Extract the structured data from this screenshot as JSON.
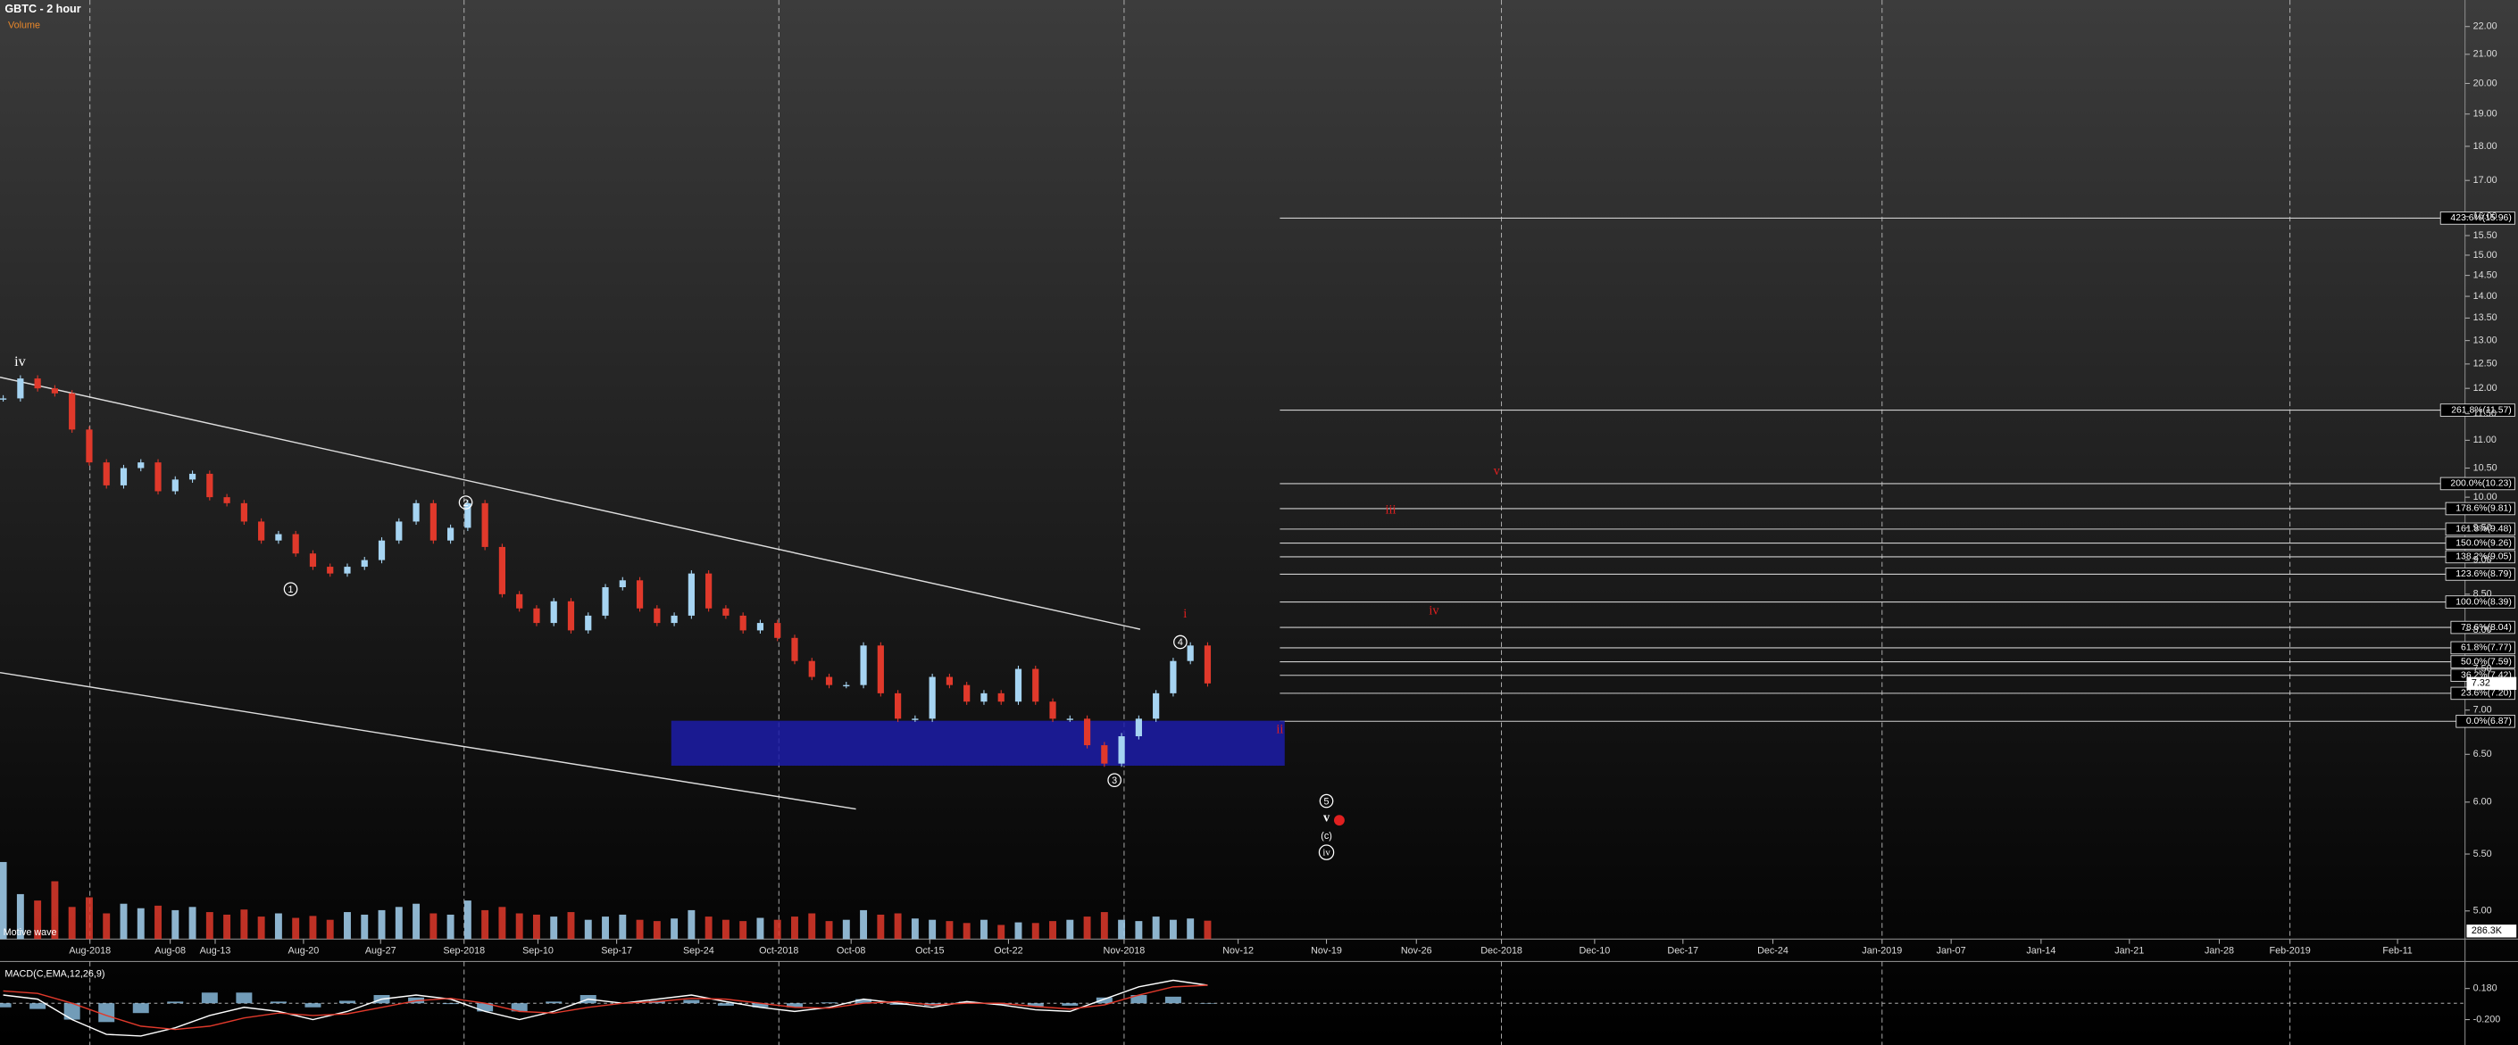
{
  "chart_data": {
    "type": "candlestick",
    "title": "GBTC - 2 hour",
    "volume_title": "Volume",
    "macd_title": "MACD(C,EMA,12,26,9)",
    "log_scale": true,
    "ylim": [
      4.77,
      23.0
    ],
    "yticks": [
      {
        "value": 22,
        "label": "22.00"
      },
      {
        "value": 21,
        "label": "21.00"
      },
      {
        "value": 20,
        "label": "20.00"
      },
      {
        "value": 19,
        "label": "19.00"
      },
      {
        "value": 18,
        "label": "18.00"
      },
      {
        "value": 17,
        "label": "17.00"
      },
      {
        "value": 16,
        "label": "16.00"
      },
      {
        "value": 15.5,
        "label": "15.50"
      },
      {
        "value": 15,
        "label": "15.00"
      },
      {
        "value": 14.5,
        "label": "14.50"
      },
      {
        "value": 14,
        "label": "14.00"
      },
      {
        "value": 13.5,
        "label": "13.50"
      },
      {
        "value": 13,
        "label": "13.00"
      },
      {
        "value": 12.5,
        "label": "12.50"
      },
      {
        "value": 12,
        "label": "12.00"
      },
      {
        "value": 11.5,
        "label": "11.50"
      },
      {
        "value": 11,
        "label": "11.00"
      },
      {
        "value": 10.5,
        "label": "10.50"
      },
      {
        "value": 10,
        "label": "10.00"
      },
      {
        "value": 9.5,
        "label": "9.50"
      },
      {
        "value": 9,
        "label": "9.00"
      },
      {
        "value": 8.5,
        "label": "8.50"
      },
      {
        "value": 8,
        "label": "8.00"
      },
      {
        "value": 7.5,
        "label": "7.50"
      },
      {
        "value": 7,
        "label": "7.00"
      },
      {
        "value": 6.5,
        "label": "6.50"
      },
      {
        "value": 6,
        "label": "6.00"
      },
      {
        "value": 5.5,
        "label": "5.50"
      },
      {
        "value": 5,
        "label": "5.00"
      }
    ],
    "x_ticks": [
      "Aug-2018",
      "Aug-08",
      "Aug-13",
      "Aug-20",
      "Aug-27",
      "Sep-2018",
      "Sep-10",
      "Sep-17",
      "Sep-24",
      "Oct-2018",
      "Oct-08",
      "Oct-15",
      "Oct-22",
      "Nov-2018",
      "Nov-12",
      "Nov-19",
      "Nov-26",
      "Dec-2018",
      "Dec-10",
      "Dec-17",
      "Dec-24",
      "Jan-2019",
      "Jan-07",
      "Jan-14",
      "Jan-21",
      "Jan-28",
      "Feb-2019",
      "Feb-11"
    ],
    "series": [
      {
        "name": "GBTC",
        "up_color": "#a6d4f2",
        "down_color": "#e0392b",
        "values": [
          11.8,
          12.2,
          12.0,
          11.9,
          11.2,
          10.6,
          10.2,
          10.5,
          10.6,
          10.1,
          10.3,
          10.4,
          10.0,
          9.9,
          9.6,
          9.3,
          9.4,
          9.1,
          8.9,
          8.8,
          8.9,
          9.0,
          9.3,
          9.6,
          9.9,
          9.3,
          9.5,
          9.9,
          9.2,
          8.5,
          8.3,
          8.1,
          8.4,
          8.0,
          8.2,
          8.6,
          8.7,
          8.3,
          8.1,
          8.2,
          8.8,
          8.3,
          8.2,
          8.0,
          8.1,
          7.9,
          7.6,
          7.4,
          7.3,
          7.3,
          7.8,
          7.2,
          6.9,
          6.9,
          7.4,
          7.3,
          7.1,
          7.2,
          7.1,
          7.5,
          7.1,
          6.9,
          6.9,
          6.6,
          6.4,
          6.7,
          6.9,
          7.2,
          7.6,
          7.8,
          7.32
        ]
      }
    ],
    "last_price": 7.32,
    "volume": [
      1200000,
      700000,
      600000,
      900000,
      500000,
      650000,
      400000,
      550000,
      480000,
      520000,
      450000,
      500000,
      420000,
      380000,
      460000,
      350000,
      400000,
      330000,
      360000,
      300000,
      420000,
      380000,
      450000,
      500000,
      550000,
      400000,
      380000,
      600000,
      450000,
      500000,
      400000,
      380000,
      350000,
      420000,
      300000,
      350000,
      380000,
      300000,
      280000,
      320000,
      450000,
      350000,
      300000,
      280000,
      330000,
      300000,
      350000,
      400000,
      280000,
      300000,
      450000,
      380000,
      400000,
      320000,
      300000,
      280000,
      250000,
      300000,
      220000,
      260000,
      250000,
      280000,
      300000,
      350000,
      420000,
      300000,
      280000,
      350000,
      300000,
      320000,
      286300
    ],
    "volume_lim": [
      0,
      1500000
    ],
    "last_volume": {
      "value": 286300,
      "label": "286.3K"
    },
    "macd": {
      "ylim": [
        -0.51,
        0.47
      ],
      "yticks": [
        {
          "value": 0.18,
          "label": "0.180"
        },
        {
          "value": -0.2,
          "label": "-0.200"
        }
      ],
      "macd": [
        0.1,
        0.05,
        -0.2,
        -0.38,
        -0.4,
        -0.3,
        -0.15,
        -0.05,
        -0.1,
        -0.2,
        -0.1,
        0.05,
        0.1,
        0.05,
        -0.1,
        -0.2,
        -0.1,
        0.05,
        0.0,
        0.05,
        0.1,
        0.02,
        -0.05,
        -0.1,
        -0.05,
        0.05,
        0.0,
        -0.05,
        0.02,
        -0.02,
        -0.08,
        -0.1,
        0.05,
        0.2,
        0.28,
        0.22
      ],
      "signal": [
        0.15,
        0.12,
        0.0,
        -0.15,
        -0.28,
        -0.32,
        -0.28,
        -0.18,
        -0.12,
        -0.15,
        -0.13,
        -0.05,
        0.03,
        0.06,
        0.0,
        -0.1,
        -0.12,
        -0.05,
        0.0,
        0.02,
        0.06,
        0.05,
        0.0,
        -0.05,
        -0.06,
        0.0,
        0.02,
        -0.02,
        0.0,
        0.0,
        -0.04,
        -0.07,
        -0.02,
        0.1,
        0.2,
        0.22
      ],
      "histogram": [
        -0.05,
        -0.07,
        -0.2,
        -0.23,
        -0.12,
        0.02,
        0.13,
        0.13,
        0.02,
        -0.05,
        0.03,
        0.1,
        0.07,
        -0.01,
        -0.1,
        -0.1,
        0.02,
        0.1,
        0.0,
        0.03,
        0.04,
        -0.03,
        -0.05,
        -0.05,
        0.01,
        0.05,
        -0.02,
        -0.03,
        0.02,
        -0.02,
        -0.04,
        -0.03,
        0.07,
        0.1,
        0.08,
        0.0
      ]
    },
    "fib_levels": [
      {
        "label": "423.6%(15.96)",
        "value": 15.96
      },
      {
        "label": "261.8%(11.57)",
        "value": 11.57
      },
      {
        "label": "200.0%(10.23)",
        "value": 10.23
      },
      {
        "label": "178.6%(9.81)",
        "value": 9.81
      },
      {
        "label": "161.8%(9.48)",
        "value": 9.48
      },
      {
        "label": "150.0%(9.26)",
        "value": 9.26
      },
      {
        "label": "138.2%(9.05)",
        "value": 9.05
      },
      {
        "label": "123.6%(8.79)",
        "value": 8.79
      },
      {
        "label": "100.0%(8.39)",
        "value": 8.39
      },
      {
        "label": "78.6%(8.04)",
        "value": 8.04
      },
      {
        "label": "61.8%(7.77)",
        "value": 7.77
      },
      {
        "label": "50.0%(7.59)",
        "value": 7.59
      },
      {
        "label": "36.2%(7.42)",
        "value": 7.42
      },
      {
        "label": "23.6%(7.20)",
        "value": 7.2
      },
      {
        "label": "0.0%(6.87)",
        "value": 6.87
      }
    ],
    "annotations": {
      "iv_top": "iv",
      "w1": "1",
      "w2": "2",
      "w3": "3",
      "w4": "4",
      "w5": "5",
      "v": "v",
      "c": "(c)",
      "iv_circ": "iv",
      "motive": "Motive wave",
      "red_i": "i",
      "red_ii": "ii",
      "red_iii": "iii",
      "red_iv": "iv",
      "red_v": "v"
    }
  }
}
